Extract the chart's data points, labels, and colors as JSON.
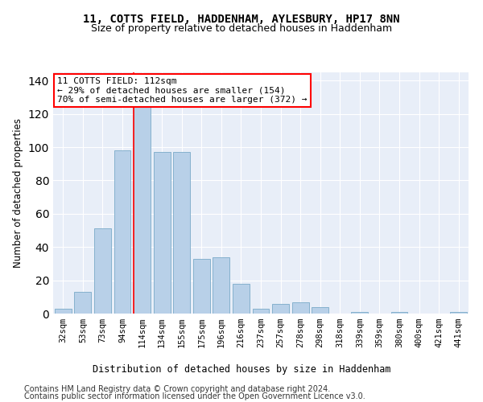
{
  "title": "11, COTTS FIELD, HADDENHAM, AYLESBURY, HP17 8NN",
  "subtitle": "Size of property relative to detached houses in Haddenham",
  "xlabel": "Distribution of detached houses by size in Haddenham",
  "ylabel": "Number of detached properties",
  "categories": [
    "32sqm",
    "53sqm",
    "73sqm",
    "94sqm",
    "114sqm",
    "134sqm",
    "155sqm",
    "175sqm",
    "196sqm",
    "216sqm",
    "237sqm",
    "257sqm",
    "278sqm",
    "298sqm",
    "318sqm",
    "339sqm",
    "359sqm",
    "380sqm",
    "400sqm",
    "421sqm",
    "441sqm"
  ],
  "values": [
    3,
    13,
    51,
    98,
    130,
    97,
    97,
    33,
    34,
    18,
    3,
    6,
    7,
    4,
    0,
    1,
    0,
    1,
    0,
    0,
    1
  ],
  "bar_color": "#b8d0e8",
  "bar_edge_color": "#7aaac8",
  "marker_line_index": 4,
  "annotation_line1": "11 COTTS FIELD: 112sqm",
  "annotation_line2": "← 29% of detached houses are smaller (154)",
  "annotation_line3": "70% of semi-detached houses are larger (372) →",
  "annotation_box_color": "white",
  "annotation_box_edge": "red",
  "footer1": "Contains HM Land Registry data © Crown copyright and database right 2024.",
  "footer2": "Contains public sector information licensed under the Open Government Licence v3.0.",
  "bg_color": "#e8eef8",
  "ylim": [
    0,
    145
  ],
  "title_fontsize": 10,
  "subtitle_fontsize": 9,
  "axis_label_fontsize": 8.5,
  "tick_fontsize": 7.5,
  "annotation_fontsize": 8,
  "footer_fontsize": 7
}
